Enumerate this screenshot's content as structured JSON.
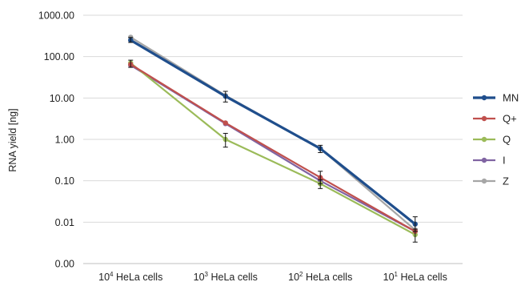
{
  "chart_data": {
    "type": "line",
    "yscale": "log",
    "ylabel": "RNA yield [ng]",
    "xlabel": "",
    "ylim": [
      0.001,
      1000
    ],
    "grid": "horizontal",
    "legend_position": "right",
    "y_ticks": [
      {
        "value": 1000,
        "label": "1000.00"
      },
      {
        "value": 100,
        "label": "100.00"
      },
      {
        "value": 10,
        "label": "10.00"
      },
      {
        "value": 1,
        "label": "1.00"
      },
      {
        "value": 0.1,
        "label": "0.10"
      },
      {
        "value": 0.01,
        "label": "0.01"
      },
      {
        "value": 0.001,
        "label": "0.00"
      }
    ],
    "categories": [
      {
        "base": "10",
        "exp": "4",
        "suffix": " HeLa cells"
      },
      {
        "base": "10",
        "exp": "3",
        "suffix": " HeLa cells"
      },
      {
        "base": "10",
        "exp": "2",
        "suffix": " HeLa cells"
      },
      {
        "base": "10",
        "exp": "1",
        "suffix": " HeLa cells"
      }
    ],
    "series": [
      {
        "name": "MN",
        "color": "#1f4e8c",
        "values": [
          250,
          11,
          0.6,
          0.009
        ],
        "errors": [
          [
            220,
            290
          ],
          [
            8,
            14.5
          ],
          [
            0.48,
            0.72
          ],
          [
            0.006,
            0.0135
          ]
        ]
      },
      {
        "name": "Q+",
        "color": "#c0504d",
        "values": [
          65,
          2.5,
          0.12,
          0.006
        ],
        "errors": [
          null,
          null,
          [
            0.085,
            0.17
          ],
          null
        ]
      },
      {
        "name": "Q",
        "color": "#9bbb59",
        "values": [
          70,
          1.0,
          0.085,
          0.005
        ],
        "errors": [
          [
            55,
            82
          ],
          [
            0.65,
            1.4
          ],
          [
            0.065,
            0.105
          ],
          [
            0.0033,
            0.0068
          ]
        ]
      },
      {
        "name": "I",
        "color": "#8064a2",
        "values": [
          62,
          2.4,
          0.1,
          0.006
        ],
        "errors": [
          null,
          null,
          null,
          null
        ]
      },
      {
        "name": "Z",
        "color": "#a6a6a6",
        "values": [
          295,
          11.5,
          0.6,
          0.0065
        ],
        "errors": [
          null,
          null,
          null,
          null
        ]
      }
    ]
  }
}
